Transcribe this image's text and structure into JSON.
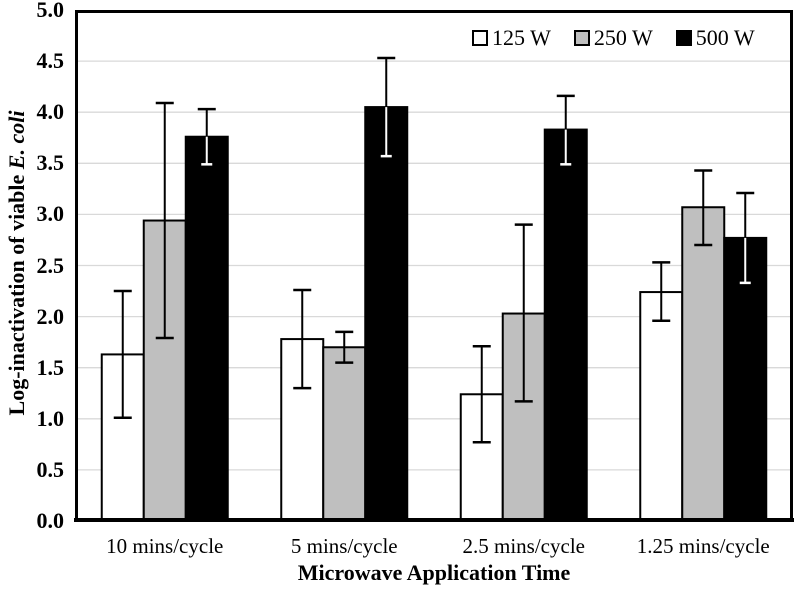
{
  "chart_data": {
    "type": "bar",
    "title": "",
    "xlabel": "Microwave Application Time",
    "ylabel": "Log-inactivation of viable E. coli",
    "ylabel_main": "Log-inactivation of viable ",
    "ylabel_italic": "E. coli",
    "categories": [
      "10 mins/cycle",
      "5 mins/cycle",
      "2.5 mins/cycle",
      "1.25 mins/cycle"
    ],
    "series": [
      {
        "name": "125 W",
        "color": "#ffffff",
        "values": [
          1.63,
          1.78,
          1.24,
          2.24
        ],
        "err_low": [
          1.01,
          1.3,
          0.77,
          1.96
        ],
        "err_high": [
          2.25,
          2.26,
          1.71,
          2.53
        ]
      },
      {
        "name": "250 W",
        "color": "#bfbfbf",
        "values": [
          2.94,
          1.7,
          2.03,
          3.07
        ],
        "err_low": [
          1.79,
          1.55,
          1.17,
          2.7
        ],
        "err_high": [
          4.09,
          1.85,
          2.9,
          3.43
        ]
      },
      {
        "name": "500 W",
        "color": "#000000",
        "values": [
          3.76,
          4.05,
          3.83,
          2.77
        ],
        "err_low": [
          3.49,
          3.57,
          3.49,
          2.33
        ],
        "err_high": [
          4.03,
          4.53,
          4.16,
          3.21
        ]
      }
    ],
    "ylim": [
      0.0,
      5.0
    ],
    "ytick_step": 0.5,
    "yticks": [
      "0.0",
      "0.5",
      "1.0",
      "1.5",
      "2.0",
      "2.5",
      "3.0",
      "3.5",
      "4.0",
      "4.5",
      "5.0"
    ],
    "grid": true,
    "grid_color": "#d9d9d9",
    "axis_color": "#000000",
    "error_bar_color_on_dark": "#ffffff",
    "legend_position": "top-right"
  }
}
